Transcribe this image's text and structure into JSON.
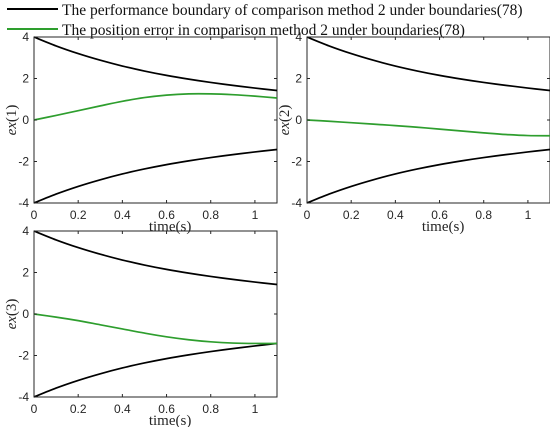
{
  "legend": {
    "items": [
      {
        "label": "The performance boundary of comparison method 2 under boundaries(78)",
        "color": "#000000"
      },
      {
        "label": "The position error in comparison method 2 under boundaries(78)",
        "color": "#2e9e2e"
      }
    ]
  },
  "chart_data": [
    {
      "type": "line",
      "ylabel": "ex(1)",
      "ylabel_parts": {
        "italic": "ex",
        "rest": "(1)"
      },
      "xlabel": "time(s)",
      "xlim": [
        0,
        1.1
      ],
      "ylim": [
        -4,
        4
      ],
      "xticks": [
        "0",
        "0.2",
        "0.4",
        "0.6",
        "0.8",
        "1"
      ],
      "yticks": [
        "-4",
        "-2",
        "0",
        "2",
        "4"
      ],
      "x": [
        0,
        0.1,
        0.2,
        0.3,
        0.4,
        0.5,
        0.6,
        0.7,
        0.8,
        0.9,
        1.0,
        1.1
      ],
      "series": [
        {
          "color": "#000000",
          "values": [
            4.0,
            3.57,
            3.2,
            2.88,
            2.6,
            2.36,
            2.15,
            1.97,
            1.81,
            1.67,
            1.54,
            1.42
          ]
        },
        {
          "color": "#000000",
          "values": [
            -4.0,
            -3.57,
            -3.2,
            -2.88,
            -2.6,
            -2.36,
            -2.15,
            -1.97,
            -1.81,
            -1.67,
            -1.54,
            -1.42
          ]
        },
        {
          "color": "#2e9e2e",
          "values": [
            0.0,
            0.22,
            0.45,
            0.68,
            0.9,
            1.08,
            1.2,
            1.26,
            1.26,
            1.22,
            1.15,
            1.06
          ]
        }
      ]
    },
    {
      "type": "line",
      "ylabel": "ex(2)",
      "ylabel_parts": {
        "italic": "ex",
        "rest": "(2)"
      },
      "xlabel": "time(s)",
      "xlim": [
        0,
        1.1
      ],
      "ylim": [
        -4,
        4
      ],
      "xticks": [
        "0",
        "0.2",
        "0.4",
        "0.6",
        "0.8",
        "1"
      ],
      "yticks": [
        "-4",
        "-2",
        "0",
        "2",
        "4"
      ],
      "x": [
        0,
        0.1,
        0.2,
        0.3,
        0.4,
        0.5,
        0.6,
        0.7,
        0.8,
        0.9,
        1.0,
        1.1
      ],
      "series": [
        {
          "color": "#000000",
          "values": [
            4.0,
            3.57,
            3.2,
            2.88,
            2.6,
            2.36,
            2.15,
            1.97,
            1.81,
            1.67,
            1.54,
            1.42
          ]
        },
        {
          "color": "#000000",
          "values": [
            -4.0,
            -3.57,
            -3.2,
            -2.88,
            -2.6,
            -2.36,
            -2.15,
            -1.97,
            -1.81,
            -1.67,
            -1.54,
            -1.42
          ]
        },
        {
          "color": "#2e9e2e",
          "values": [
            0.0,
            -0.06,
            -0.13,
            -0.2,
            -0.27,
            -0.35,
            -0.44,
            -0.53,
            -0.62,
            -0.7,
            -0.75,
            -0.76
          ]
        }
      ]
    },
    {
      "type": "line",
      "ylabel": "ex(3)",
      "ylabel_parts": {
        "italic": "ex",
        "rest": "(3)"
      },
      "xlabel": "time(s)",
      "xlim": [
        0,
        1.1
      ],
      "ylim": [
        -4,
        4
      ],
      "xticks": [
        "0",
        "0.2",
        "0.4",
        "0.6",
        "0.8",
        "1"
      ],
      "yticks": [
        "-4",
        "-2",
        "0",
        "2",
        "4"
      ],
      "x": [
        0,
        0.1,
        0.2,
        0.3,
        0.4,
        0.5,
        0.6,
        0.7,
        0.8,
        0.9,
        1.0,
        1.1
      ],
      "series": [
        {
          "color": "#000000",
          "values": [
            4.0,
            3.57,
            3.2,
            2.88,
            2.6,
            2.36,
            2.15,
            1.97,
            1.81,
            1.67,
            1.54,
            1.42
          ]
        },
        {
          "color": "#000000",
          "values": [
            -4.0,
            -3.57,
            -3.2,
            -2.88,
            -2.6,
            -2.36,
            -2.15,
            -1.97,
            -1.81,
            -1.67,
            -1.54,
            -1.42
          ]
        },
        {
          "color": "#2e9e2e",
          "values": [
            0.0,
            -0.15,
            -0.32,
            -0.52,
            -0.72,
            -0.92,
            -1.1,
            -1.24,
            -1.34,
            -1.4,
            -1.42,
            -1.42
          ]
        }
      ]
    }
  ]
}
